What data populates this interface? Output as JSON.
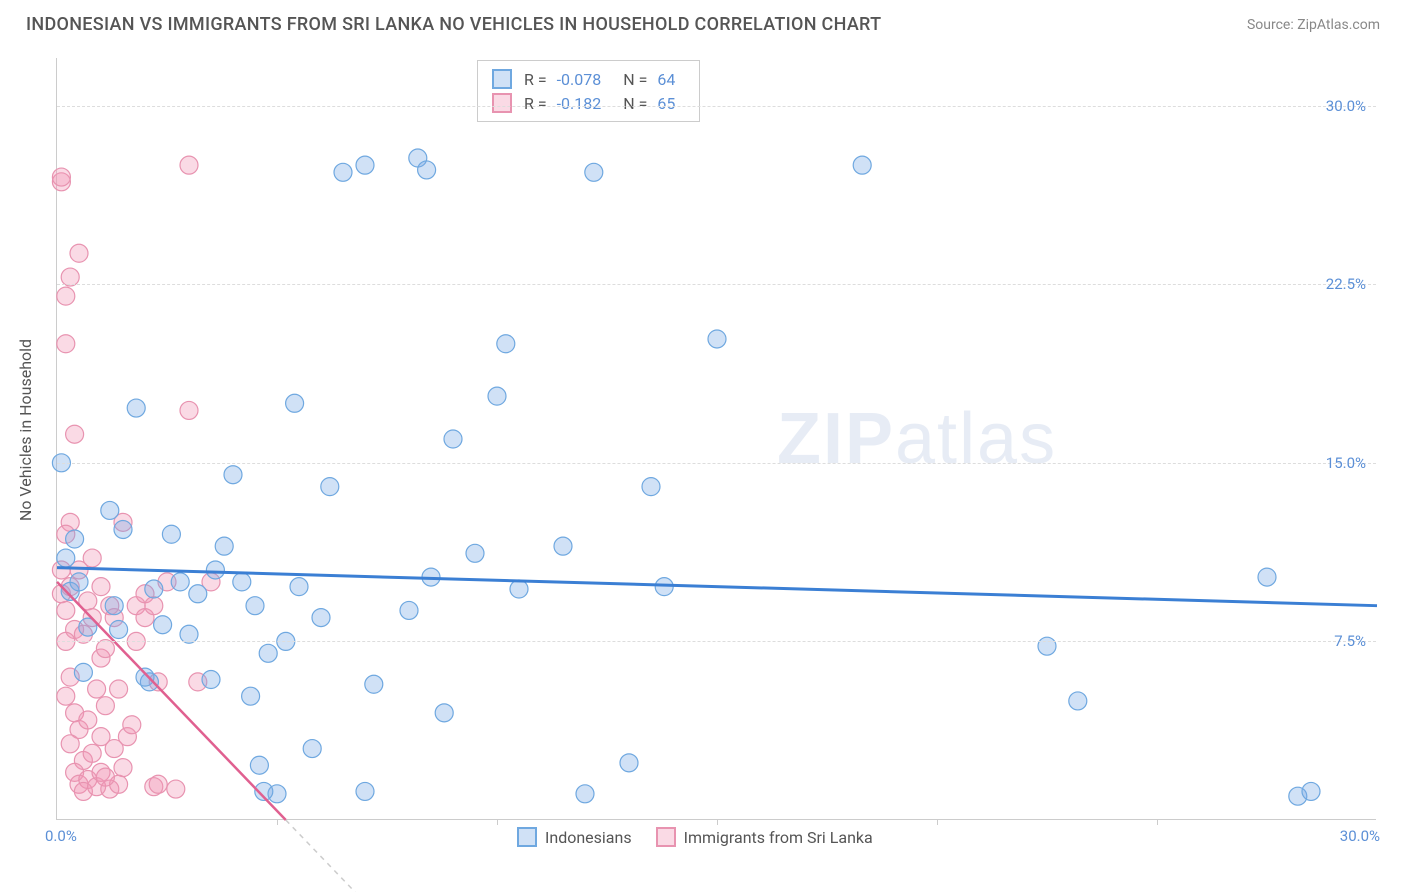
{
  "header": {
    "title": "INDONESIAN VS IMMIGRANTS FROM SRI LANKA NO VEHICLES IN HOUSEHOLD CORRELATION CHART",
    "source": "Source: ZipAtlas.com"
  },
  "ylabel": "No Vehicles in Household",
  "watermark": {
    "bold": "ZIP",
    "light": "atlas"
  },
  "chart": {
    "type": "scatter",
    "xlim": [
      0,
      30
    ],
    "ylim": [
      0,
      32
    ],
    "ytick_values": [
      7.5,
      15.0,
      22.5,
      30.0
    ],
    "ytick_labels": [
      "7.5%",
      "15.0%",
      "22.5%",
      "30.0%"
    ],
    "xtick_values": [
      0,
      5,
      10,
      15,
      20,
      25,
      30
    ],
    "xtick_left_label": "0.0%",
    "xtick_right_label": "30.0%",
    "background_color": "#ffffff",
    "grid_color": "#dddddd",
    "axis_color": "#cccccc",
    "tick_label_color": "#5b8fd6"
  },
  "series": {
    "blue": {
      "label": "Indonesians",
      "fill_color": "rgba(120,170,230,0.35)",
      "stroke_color": "#6fa8e0",
      "stroke_width": 1.2,
      "marker_radius": 9,
      "R": "-0.078",
      "N": "64",
      "trend": {
        "x1": 0,
        "y1": 10.6,
        "x2": 30,
        "y2": 9.0,
        "color": "#3b7fd4",
        "width": 3
      },
      "points": [
        [
          0.1,
          15.0
        ],
        [
          0.3,
          9.6
        ],
        [
          0.6,
          6.2
        ],
        [
          0.5,
          10.0
        ],
        [
          0.7,
          8.1
        ],
        [
          0.4,
          11.8
        ],
        [
          1.2,
          13.0
        ],
        [
          1.5,
          12.2
        ],
        [
          1.4,
          8.0
        ],
        [
          1.3,
          9.0
        ],
        [
          1.8,
          17.3
        ],
        [
          2.2,
          9.7
        ],
        [
          2.4,
          8.2
        ],
        [
          2.1,
          5.8
        ],
        [
          2.6,
          12.0
        ],
        [
          2.8,
          10.0
        ],
        [
          3.0,
          7.8
        ],
        [
          3.2,
          9.5
        ],
        [
          3.5,
          5.9
        ],
        [
          3.6,
          10.5
        ],
        [
          3.8,
          11.5
        ],
        [
          4.0,
          14.5
        ],
        [
          4.2,
          10.0
        ],
        [
          4.5,
          9.0
        ],
        [
          4.4,
          5.2
        ],
        [
          4.8,
          7.0
        ],
        [
          4.6,
          2.3
        ],
        [
          5.0,
          1.1
        ],
        [
          4.7,
          1.2
        ],
        [
          5.2,
          7.5
        ],
        [
          5.4,
          17.5
        ],
        [
          5.5,
          9.8
        ],
        [
          5.8,
          3.0
        ],
        [
          6.0,
          8.5
        ],
        [
          6.2,
          14.0
        ],
        [
          6.5,
          27.2
        ],
        [
          7.0,
          27.5
        ],
        [
          7.0,
          1.2
        ],
        [
          7.2,
          5.7
        ],
        [
          8.0,
          8.8
        ],
        [
          8.2,
          27.8
        ],
        [
          8.4,
          27.3
        ],
        [
          8.5,
          10.2
        ],
        [
          8.8,
          4.5
        ],
        [
          9.0,
          16.0
        ],
        [
          9.5,
          11.2
        ],
        [
          10.0,
          17.8
        ],
        [
          10.2,
          20.0
        ],
        [
          10.5,
          9.7
        ],
        [
          11.5,
          11.5
        ],
        [
          12.0,
          1.1
        ],
        [
          12.2,
          27.2
        ],
        [
          13.0,
          2.4
        ],
        [
          13.5,
          14.0
        ],
        [
          13.8,
          9.8
        ],
        [
          15.0,
          20.2
        ],
        [
          18.3,
          27.5
        ],
        [
          22.5,
          7.3
        ],
        [
          23.2,
          5.0
        ],
        [
          27.5,
          10.2
        ],
        [
          28.2,
          1.0
        ],
        [
          28.5,
          1.2
        ],
        [
          0.2,
          11.0
        ],
        [
          2.0,
          6.0
        ]
      ]
    },
    "pink": {
      "label": "Immigrants from Sri Lanka",
      "fill_color": "rgba(240,150,180,0.35)",
      "stroke_color": "#e893b0",
      "stroke_width": 1.2,
      "marker_radius": 9,
      "R": "-0.182",
      "N": "65",
      "trend": {
        "x1": 0,
        "y1": 10.0,
        "x2": 5.2,
        "y2": 0,
        "color": "#e06090",
        "width": 2.5,
        "dash_ext_x2": 7.5
      },
      "points": [
        [
          0.1,
          26.8
        ],
        [
          0.2,
          22.0
        ],
        [
          0.1,
          27.0
        ],
        [
          0.3,
          22.8
        ],
        [
          0.2,
          20.0
        ],
        [
          0.5,
          23.8
        ],
        [
          0.4,
          16.2
        ],
        [
          0.3,
          12.5
        ],
        [
          0.1,
          10.5
        ],
        [
          0.2,
          12.0
        ],
        [
          0.1,
          9.5
        ],
        [
          0.3,
          9.8
        ],
        [
          0.2,
          8.8
        ],
        [
          0.4,
          8.0
        ],
        [
          0.2,
          7.5
        ],
        [
          0.3,
          6.0
        ],
        [
          0.2,
          5.2
        ],
        [
          0.4,
          4.5
        ],
        [
          0.5,
          3.8
        ],
        [
          0.3,
          3.2
        ],
        [
          0.6,
          2.5
        ],
        [
          0.4,
          2.0
        ],
        [
          0.5,
          1.5
        ],
        [
          0.7,
          1.7
        ],
        [
          0.6,
          1.2
        ],
        [
          0.8,
          2.8
        ],
        [
          0.9,
          1.4
        ],
        [
          1.0,
          2.0
        ],
        [
          1.0,
          3.5
        ],
        [
          1.1,
          4.8
        ],
        [
          0.9,
          5.5
        ],
        [
          1.0,
          6.8
        ],
        [
          1.1,
          7.2
        ],
        [
          0.8,
          8.5
        ],
        [
          1.2,
          9.0
        ],
        [
          1.0,
          9.8
        ],
        [
          1.3,
          8.5
        ],
        [
          1.4,
          5.5
        ],
        [
          1.2,
          1.3
        ],
        [
          1.5,
          2.2
        ],
        [
          1.4,
          1.5
        ],
        [
          1.6,
          3.5
        ],
        [
          1.5,
          12.5
        ],
        [
          1.7,
          4.0
        ],
        [
          1.8,
          9.0
        ],
        [
          1.8,
          7.5
        ],
        [
          2.0,
          8.5
        ],
        [
          2.0,
          9.5
        ],
        [
          2.2,
          9.0
        ],
        [
          2.2,
          1.4
        ],
        [
          2.3,
          5.8
        ],
        [
          2.3,
          1.5
        ],
        [
          2.5,
          10.0
        ],
        [
          2.7,
          1.3
        ],
        [
          3.0,
          27.5
        ],
        [
          3.0,
          17.2
        ],
        [
          3.2,
          5.8
        ],
        [
          3.5,
          10.0
        ],
        [
          0.7,
          9.2
        ],
        [
          0.6,
          7.8
        ],
        [
          0.5,
          10.5
        ],
        [
          0.8,
          11.0
        ],
        [
          0.7,
          4.2
        ],
        [
          1.1,
          1.8
        ],
        [
          1.3,
          3.0
        ]
      ]
    }
  },
  "legend_top": {
    "R_label": "R =",
    "N_label": "N ="
  },
  "legend_bottom": {
    "items": [
      "Indonesians",
      "Immigrants from Sri Lanka"
    ]
  }
}
